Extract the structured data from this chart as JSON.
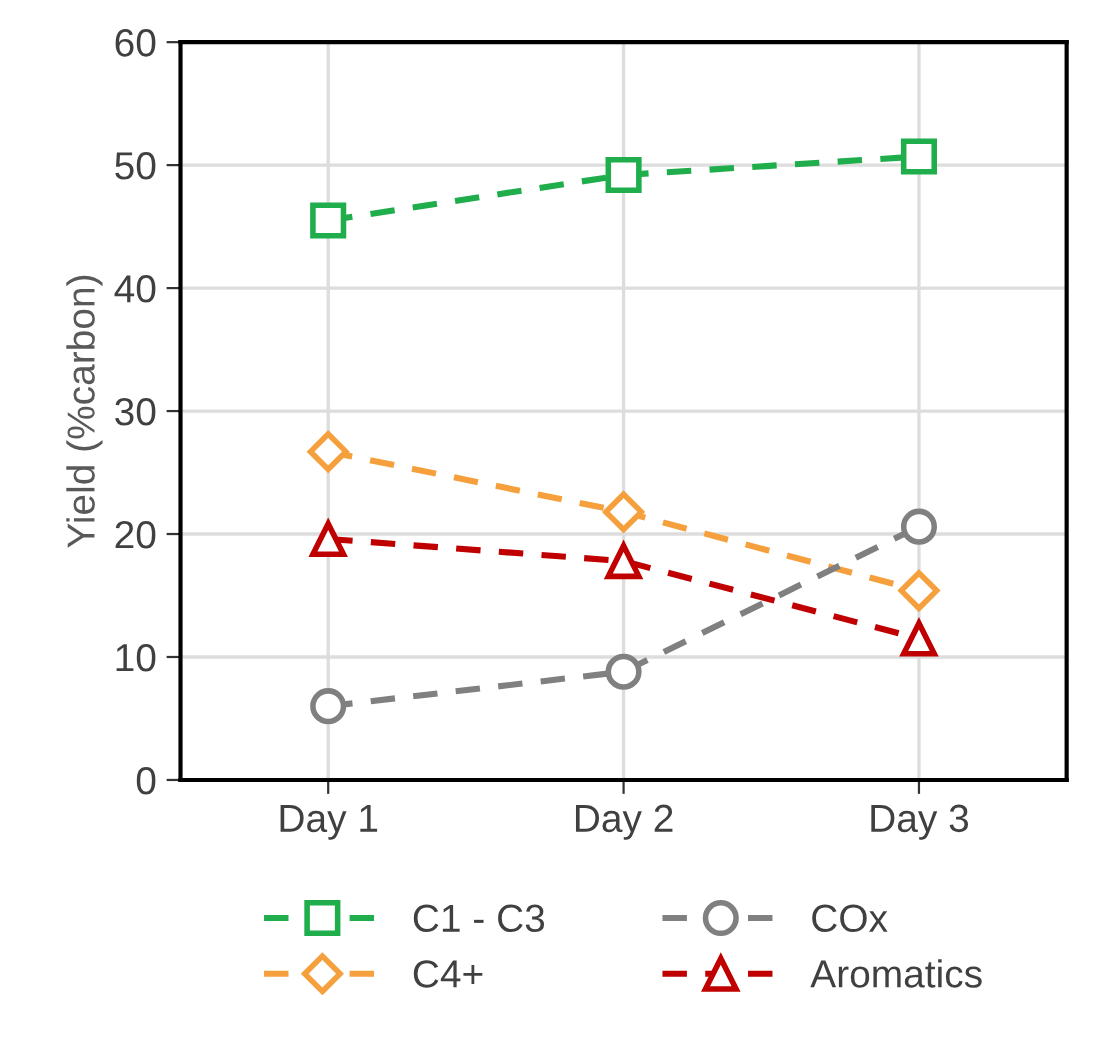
{
  "chart_data": {
    "type": "line",
    "ylabel": "Yield (%carbon)",
    "categories": [
      "Day 1",
      "Day 2",
      "Day 3"
    ],
    "series": [
      {
        "name": "C1 - C3",
        "color": "#1fae4b",
        "values": [
          45.5,
          49.2,
          50.7
        ],
        "marker": "square"
      },
      {
        "name": "C4+",
        "color": "#f5a03c",
        "values": [
          26.7,
          21.8,
          15.4
        ],
        "marker": "diamond"
      },
      {
        "name": "COx",
        "color": "#808080",
        "values": [
          6.0,
          8.8,
          20.6
        ],
        "marker": "circle"
      },
      {
        "name": "Aromatics",
        "color": "#c00000",
        "values": [
          19.6,
          17.8,
          11.5
        ],
        "marker": "triangle"
      }
    ],
    "ylim": [
      0,
      60
    ],
    "yticks": [
      0,
      10,
      20,
      30,
      40,
      50,
      60
    ],
    "grid": true,
    "legend": "bottom",
    "line_style": "dashed"
  }
}
